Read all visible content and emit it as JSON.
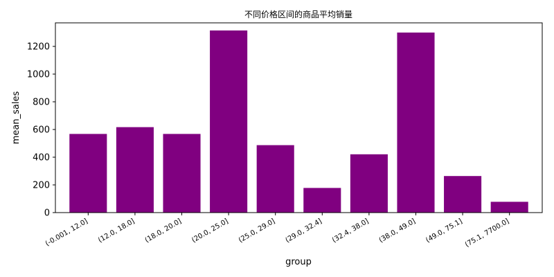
{
  "chart_data": {
    "type": "bar",
    "title": "不同价格区间的商品平均销量",
    "xlabel": "group",
    "ylabel": "mean_sales",
    "categories": [
      "(-0.001, 12.0]",
      "(12.0, 18.0]",
      "(18.0, 20.0]",
      "(20.0, 25.0]",
      "(25.0, 29.0]",
      "(29.0, 32.4]",
      "(32.4, 38.0]",
      "(38.0, 49.0]",
      "(49.0, 75.1]",
      "(75.1, 7700.0]"
    ],
    "values": [
      568,
      617,
      568,
      1315,
      487,
      178,
      421,
      1300,
      264,
      78
    ],
    "ylim": [
      0,
      1370
    ],
    "yticks": [
      0,
      200,
      400,
      600,
      800,
      1000,
      1200
    ],
    "bar_color": "#800080",
    "grid": false,
    "legend": "none"
  }
}
